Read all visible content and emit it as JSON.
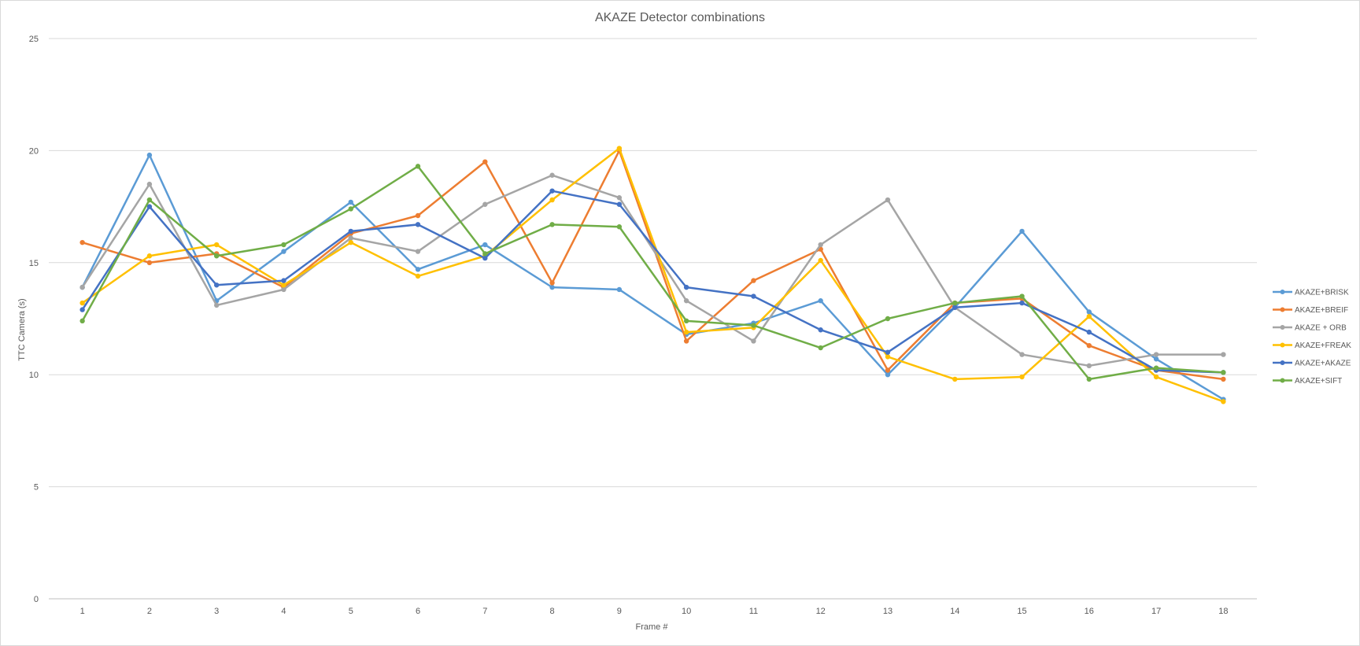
{
  "chart_data": {
    "type": "line",
    "title": "AKAZE Detector combinations",
    "xlabel": "Frame #",
    "ylabel": "TTC Camera (s)",
    "ylim": [
      0,
      25
    ],
    "yticks": [
      0,
      5,
      10,
      15,
      20,
      25
    ],
    "categories": [
      "1",
      "2",
      "3",
      "4",
      "5",
      "6",
      "7",
      "8",
      "9",
      "10",
      "11",
      "12",
      "13",
      "14",
      "15",
      "16",
      "17",
      "18"
    ],
    "grid": "horizontal",
    "legend_position": "right",
    "series": [
      {
        "name": "AKAZE+BRISK",
        "color": "#5b9bd5",
        "values": [
          13.9,
          19.8,
          13.3,
          15.5,
          17.7,
          14.7,
          15.8,
          13.9,
          13.8,
          11.8,
          12.3,
          13.3,
          10.0,
          13.0,
          16.4,
          12.8,
          10.7,
          8.9
        ]
      },
      {
        "name": "AKAZE+BREIF",
        "color": "#ed7d31",
        "values": [
          15.9,
          15.0,
          15.4,
          13.9,
          16.3,
          17.1,
          19.5,
          14.1,
          20.0,
          11.5,
          14.2,
          15.6,
          10.2,
          13.2,
          13.4,
          11.3,
          10.2,
          9.8
        ]
      },
      {
        "name": "AKAZE + ORB",
        "color": "#a5a5a5",
        "values": [
          13.9,
          18.5,
          13.1,
          13.8,
          16.1,
          15.5,
          17.6,
          18.9,
          17.9,
          13.3,
          11.5,
          15.8,
          17.8,
          13.0,
          10.9,
          10.4,
          10.9,
          10.9
        ]
      },
      {
        "name": "AKAZE+FREAK",
        "color": "#ffc000",
        "values": [
          13.2,
          15.3,
          15.8,
          14.0,
          15.9,
          14.4,
          15.3,
          17.8,
          20.1,
          11.9,
          12.1,
          15.1,
          10.8,
          9.8,
          9.9,
          12.6,
          9.9,
          8.8
        ]
      },
      {
        "name": "AKAZE+AKAZE",
        "color": "#4472c4",
        "values": [
          12.9,
          17.5,
          14.0,
          14.2,
          16.4,
          16.7,
          15.2,
          18.2,
          17.6,
          13.9,
          13.5,
          12.0,
          11.0,
          13.0,
          13.2,
          11.9,
          10.2,
          10.1
        ]
      },
      {
        "name": "AKAZE+SIFT",
        "color": "#70ad47",
        "values": [
          12.4,
          17.8,
          15.3,
          15.8,
          17.4,
          19.3,
          15.4,
          16.7,
          16.6,
          12.4,
          12.2,
          11.2,
          12.5,
          13.2,
          13.5,
          9.8,
          10.3,
          10.1
        ]
      }
    ]
  }
}
